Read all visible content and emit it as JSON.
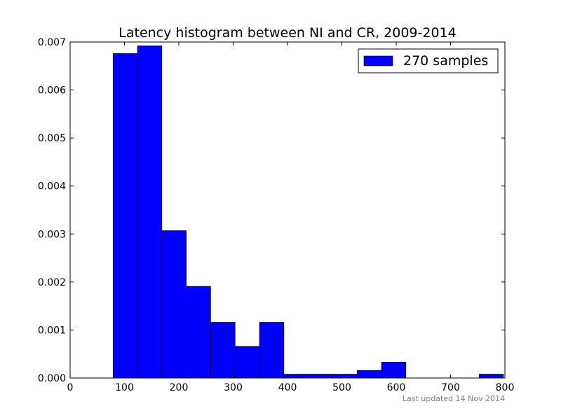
{
  "colors": {
    "bar_fill": "#0000ff",
    "bar_edge": "#000000",
    "axes": "#000000",
    "background": "#ffffff",
    "footnote": "#808080"
  },
  "footnote": "Last updated 14 Nov 2014",
  "chart_data": {
    "type": "bar",
    "title": "Latency histogram between NI and CR, 2009-2014",
    "xlabel": "",
    "ylabel": "",
    "xlim": [
      0,
      800
    ],
    "ylim": [
      0,
      0.007
    ],
    "xticks": [
      0,
      100,
      200,
      300,
      400,
      500,
      600,
      700,
      800
    ],
    "yticks": [
      "0.000",
      "0.001",
      "0.002",
      "0.003",
      "0.004",
      "0.005",
      "0.006",
      "0.007"
    ],
    "grid": false,
    "legend_position": "top-right",
    "series": [
      {
        "name": "270 samples",
        "bin_edges": [
          79,
          123.9,
          168.8,
          213.7,
          258.6,
          303.5,
          348.4,
          393.3,
          438.2,
          483.1,
          528,
          572.9,
          617.8,
          662.7,
          707.6,
          752.5,
          797.4
        ],
        "values": [
          0.00676,
          0.00692,
          0.00307,
          0.00191,
          0.00116,
          0.00066,
          0.00116,
          8e-05,
          8e-05,
          8e-05,
          0.00016,
          0.00033,
          0,
          0,
          0,
          8e-05
        ]
      }
    ]
  }
}
